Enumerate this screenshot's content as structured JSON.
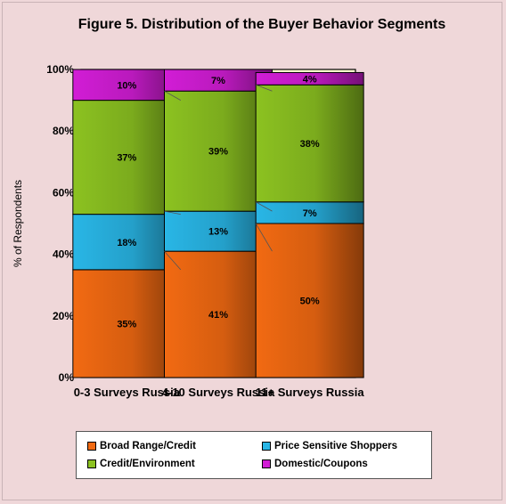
{
  "chart_data": {
    "type": "bar",
    "stacked": true,
    "title": "Figure 5.  Distribution of the Buyer Behavior Segments",
    "ylabel": "% of Respondents",
    "ylim": [
      0,
      100
    ],
    "yticks": [
      "0%",
      "20%",
      "40%",
      "60%",
      "80%",
      "100%"
    ],
    "categories": [
      "0-3 Surveys Russia",
      "4-10 Surveys Russia",
      "11+ Surveys Russia"
    ],
    "series": [
      {
        "name": "Broad Range/Credit",
        "values": [
          35,
          41,
          50
        ],
        "labels": [
          "35%",
          "41%",
          "50%"
        ],
        "color": "#f26a12"
      },
      {
        "name": "Price Sensitive Shoppers",
        "values": [
          18,
          13,
          7
        ],
        "labels": [
          "18%",
          "13%",
          "7%"
        ],
        "color": "#29b6e6"
      },
      {
        "name": "Credit/Environment",
        "values": [
          37,
          39,
          38
        ],
        "labels": [
          "37%",
          "39%",
          "38%"
        ],
        "color": "#8cc221"
      },
      {
        "name": "Domestic/Coupons",
        "values": [
          10,
          7,
          4
        ],
        "labels": [
          "10%",
          "7%",
          "4%"
        ],
        "color": "#d21dd6"
      }
    ],
    "plot_background": "#fefed0",
    "grid": false,
    "legend_position": "bottom"
  }
}
